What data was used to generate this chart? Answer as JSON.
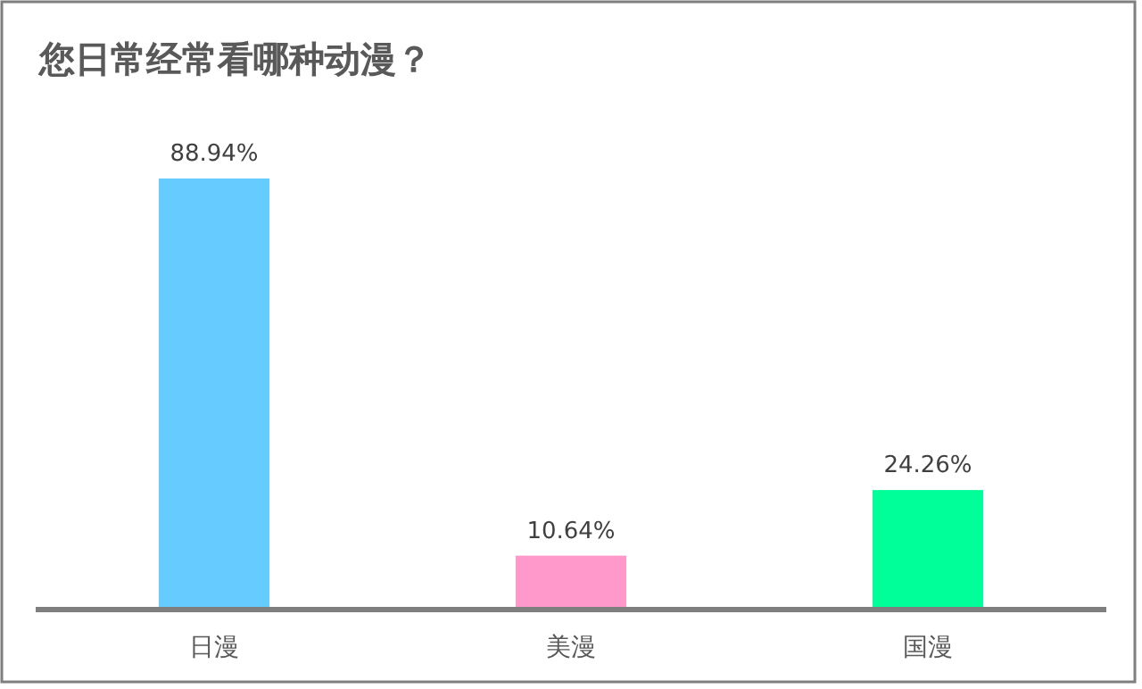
{
  "chart_data": {
    "type": "bar",
    "title": "您日常经常看哪种动漫？",
    "categories": [
      "日漫",
      "美漫",
      "国漫"
    ],
    "values": [
      88.94,
      10.64,
      24.26
    ],
    "colors": [
      "#66ccff",
      "#ff99cc",
      "#00ff99"
    ],
    "value_labels": [
      "88.94%",
      "10.64%",
      "24.26%"
    ]
  }
}
